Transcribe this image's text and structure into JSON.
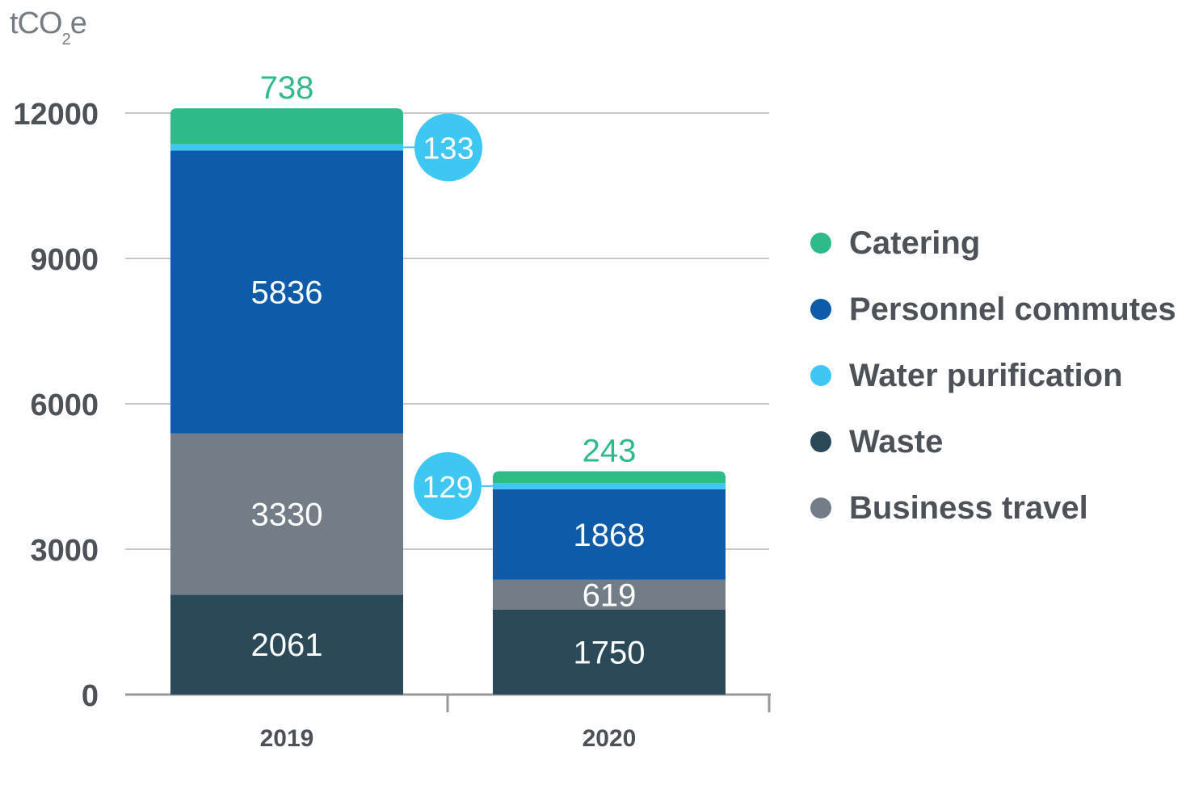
{
  "unit": {
    "main": "tCO",
    "subscript": "2",
    "suffix": "e"
  },
  "colors": {
    "Catering": "#2fba89",
    "Personnel commutes": "#0d5ba9",
    "Water purification": "#3ec7f3",
    "Waste": "#2a4a59",
    "Business travel": "#727d87",
    "grid": "#c9c9c9",
    "axis": "#999999",
    "tick_text": "#4d5259",
    "segment_text": "#ffffff"
  },
  "legend": [
    {
      "label": "Catering",
      "color": "#2fba89"
    },
    {
      "label": "Personnel commutes",
      "color": "#0d5ba9"
    },
    {
      "label": "Water purification",
      "color": "#3ec7f3"
    },
    {
      "label": "Waste",
      "color": "#2a4a59"
    },
    {
      "label": "Business travel",
      "color": "#727d87"
    }
  ],
  "chart_data": {
    "type": "bar",
    "stacked": true,
    "categories": [
      "2019",
      "2020"
    ],
    "series": [
      {
        "name": "Waste",
        "values": [
          2061,
          1750
        ]
      },
      {
        "name": "Business travel",
        "values": [
          3330,
          619
        ]
      },
      {
        "name": "Personnel commutes",
        "values": [
          5836,
          1868
        ]
      },
      {
        "name": "Water purification",
        "values": [
          133,
          129
        ]
      },
      {
        "name": "Catering",
        "values": [
          738,
          243
        ]
      }
    ],
    "ylabel": "tCO2e",
    "ylim": [
      0,
      12000
    ],
    "yticks": [
      "0",
      "3000",
      "6000",
      "9000",
      "12000"
    ],
    "grid": true,
    "legend_position": "right"
  }
}
